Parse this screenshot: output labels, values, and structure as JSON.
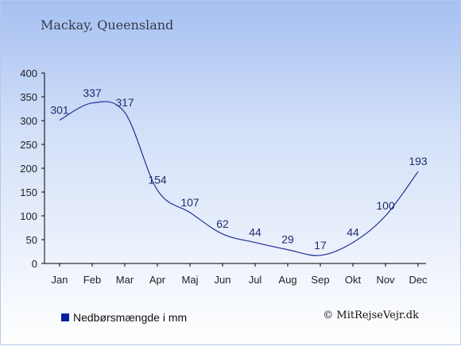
{
  "chart_data": {
    "type": "line",
    "title": "Mackay, Queensland",
    "categories": [
      "Jan",
      "Feb",
      "Mar",
      "Apr",
      "Maj",
      "Jun",
      "Jul",
      "Aug",
      "Sep",
      "Okt",
      "Nov",
      "Dec"
    ],
    "series": [
      {
        "name": "Nedbørsmængde i mm",
        "values": [
          301,
          337,
          317,
          154,
          107,
          62,
          44,
          29,
          17,
          44,
          100,
          193
        ]
      }
    ],
    "ylim": [
      0,
      400
    ],
    "yticks": [
      0,
      50,
      100,
      150,
      200,
      250,
      300,
      350,
      400
    ],
    "xlabel": "",
    "ylabel": "",
    "grid": false,
    "legend_position": "bottom-left",
    "line_color": "#1f2f96",
    "legend_color": "#0a1fa8"
  },
  "credit": "© MitRejseVejr.dk"
}
